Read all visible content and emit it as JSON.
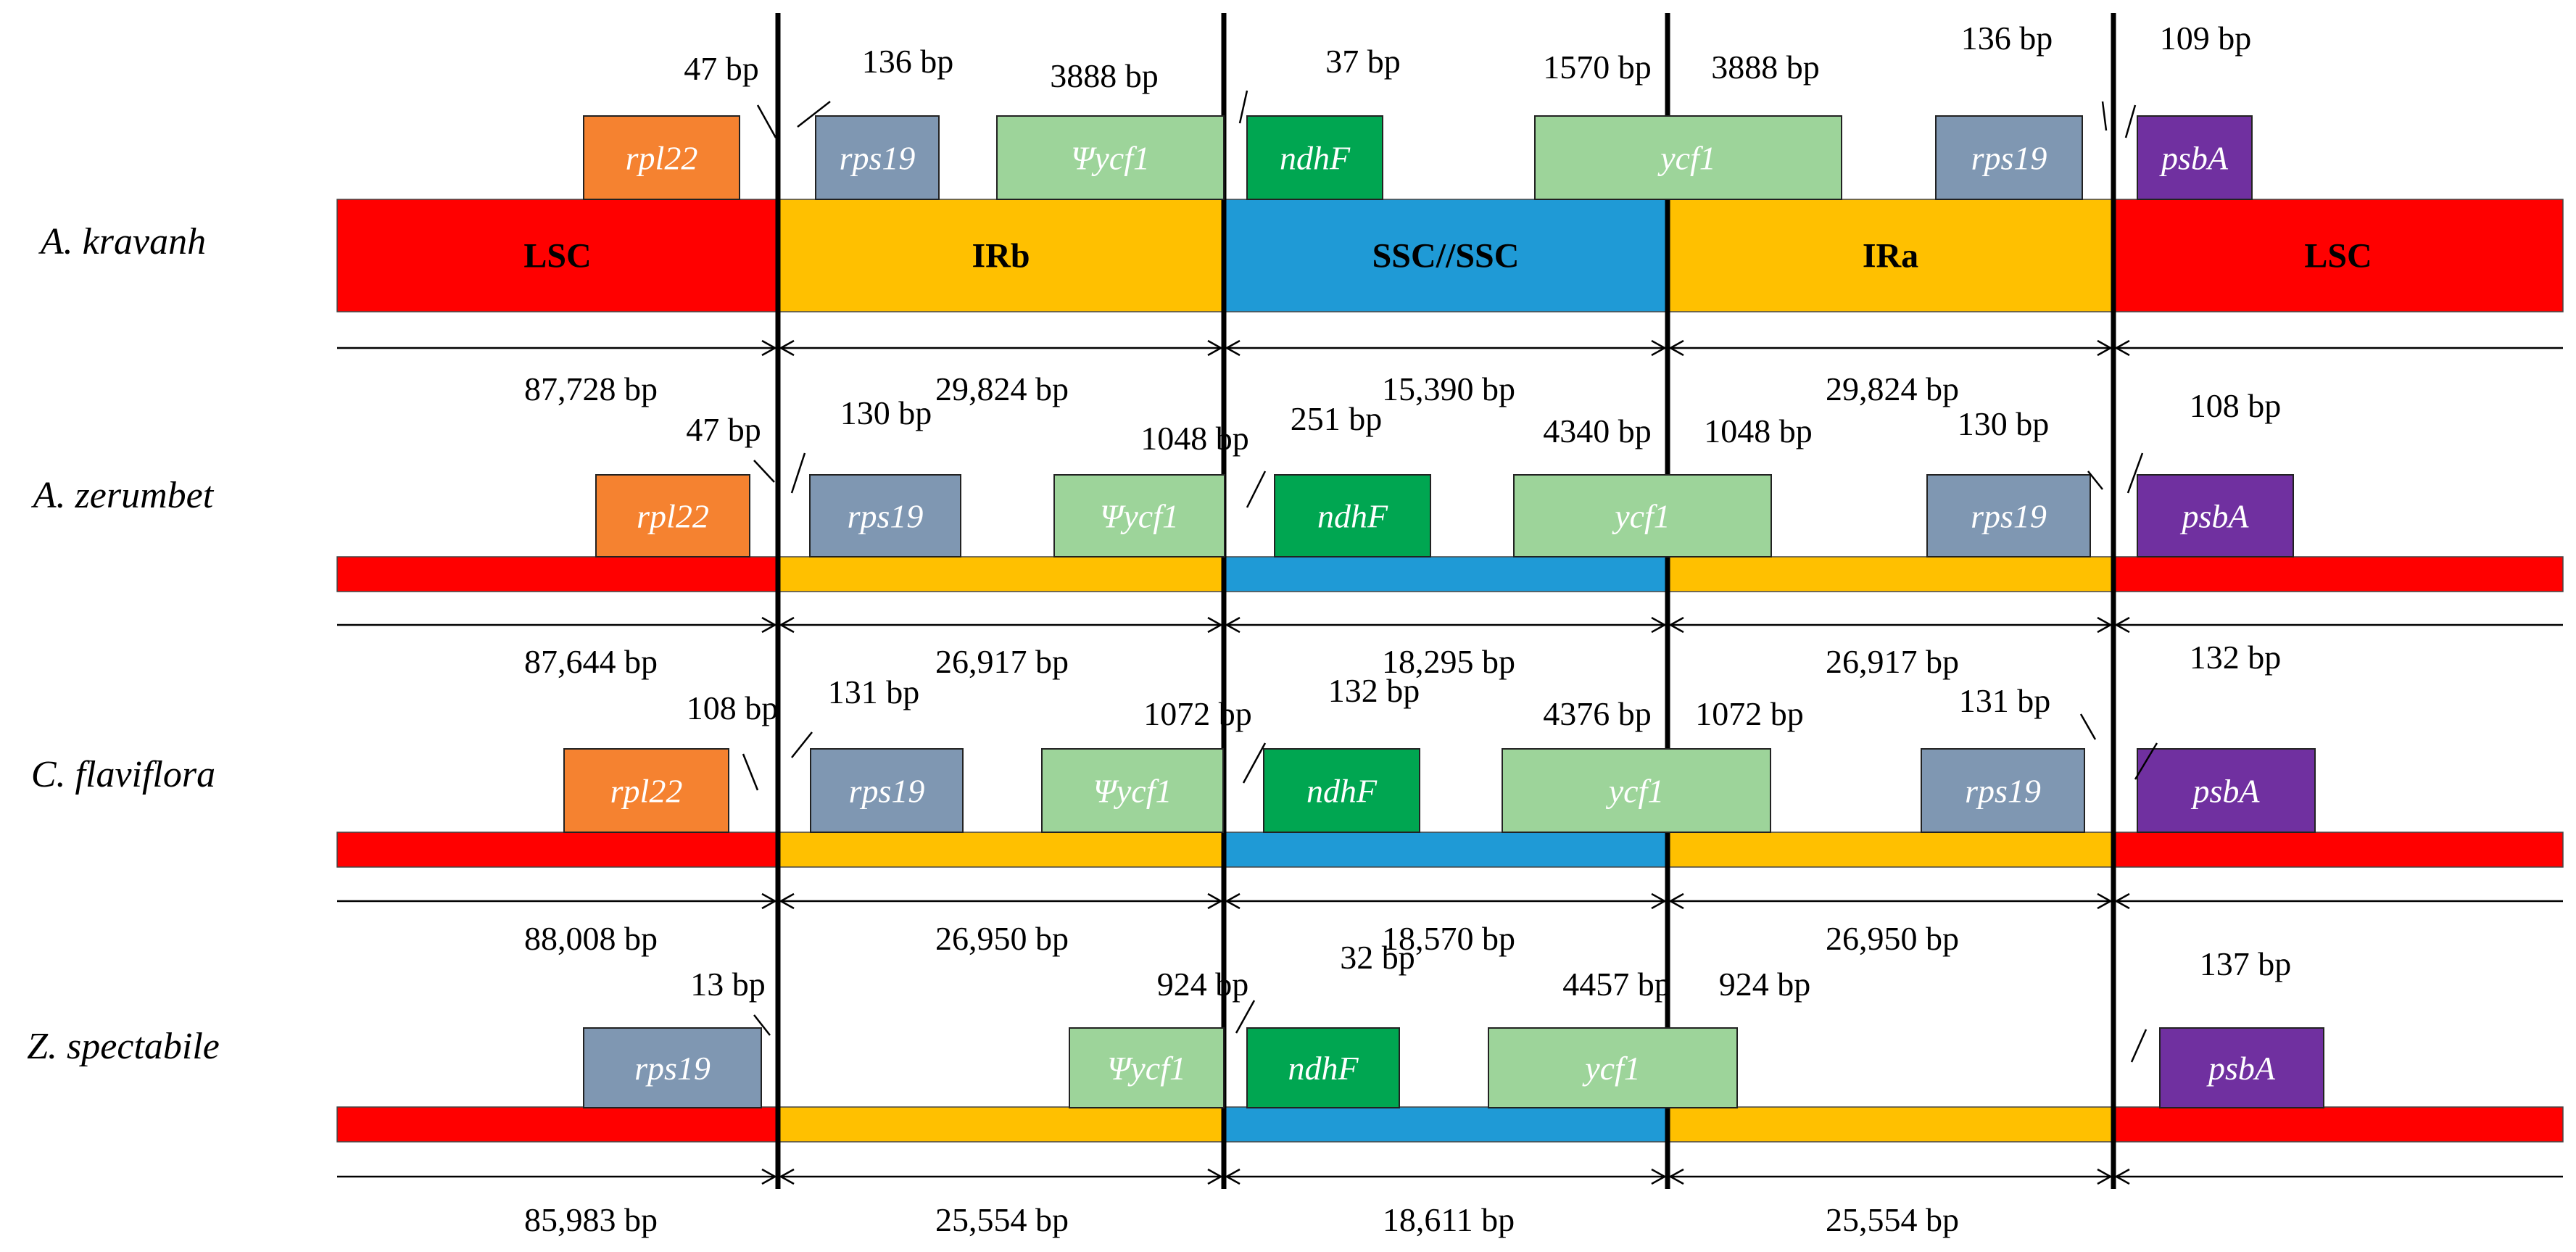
{
  "colors": {
    "LSC": "#ff0000",
    "IR": "#ffc000",
    "SSC": "#1f9ad6",
    "rpl22": "#f58230",
    "rps19": "#7f97b2",
    "ycf1": "#9dd49a",
    "ndhF": "#00a651",
    "psbA": "#7030a0"
  },
  "species": [
    {
      "name": "A. kravanh",
      "regions": [
        "LSC",
        "IRb",
        "SSC//SSC",
        "IRa",
        "LSC"
      ],
      "genes": [
        {
          "id": "rpl22",
          "label": "rpl22"
        },
        {
          "id": "rps19",
          "label": "rps19"
        },
        {
          "id": "ycf1",
          "label": "Ψycf1"
        },
        {
          "id": "ndhF",
          "label": "ndhF"
        },
        {
          "id": "ycf1",
          "label": "ycf1"
        },
        {
          "id": "rps19",
          "label": "rps19"
        },
        {
          "id": "psbA",
          "label": "psbA"
        }
      ],
      "annotations": [
        "47 bp",
        "136 bp",
        "3888 bp",
        "37 bp",
        "1570 bp",
        "3888 bp",
        "136 bp",
        "109 bp"
      ],
      "lengths": [
        "87,728 bp",
        "29,824 bp",
        "15,390 bp",
        "29,824 bp"
      ]
    },
    {
      "name": "A. zerumbet",
      "regions": [],
      "genes": [
        {
          "id": "rpl22",
          "label": "rpl22"
        },
        {
          "id": "rps19",
          "label": "rps19"
        },
        {
          "id": "ycf1",
          "label": "Ψycf1"
        },
        {
          "id": "ndhF",
          "label": "ndhF"
        },
        {
          "id": "ycf1",
          "label": "ycf1"
        },
        {
          "id": "rps19",
          "label": "rps19"
        },
        {
          "id": "psbA",
          "label": "psbA"
        }
      ],
      "annotations": [
        "47 bp",
        "130 bp",
        "1048 bp",
        "251 bp",
        "4340 bp",
        "1048 bp",
        "130 bp",
        "108 bp"
      ],
      "lengths": [
        "87,644 bp",
        "26,917 bp",
        "18,295 bp",
        "26,917 bp"
      ]
    },
    {
      "name": "C. flaviflora",
      "regions": [],
      "genes": [
        {
          "id": "rpl22",
          "label": "rpl22"
        },
        {
          "id": "rps19",
          "label": "rps19"
        },
        {
          "id": "ycf1",
          "label": "Ψycf1"
        },
        {
          "id": "ndhF",
          "label": "ndhF"
        },
        {
          "id": "ycf1",
          "label": "ycf1"
        },
        {
          "id": "rps19",
          "label": "rps19"
        },
        {
          "id": "psbA",
          "label": "psbA"
        }
      ],
      "annotations": [
        "108 bp",
        "131 bp",
        "1072 bp",
        "132 bp",
        "4376 bp",
        "1072 bp",
        "131 bp",
        "132 bp"
      ],
      "lengths": [
        "88,008 bp",
        "26,950 bp",
        "18,570 bp",
        "26,950 bp"
      ]
    },
    {
      "name": "Z. spectabile",
      "regions": [],
      "genes": [
        {
          "id": "rps19",
          "label": "rps19"
        },
        {
          "id": "ycf1",
          "label": "Ψycf1"
        },
        {
          "id": "ndhF",
          "label": "ndhF"
        },
        {
          "id": "ycf1",
          "label": "ycf1"
        },
        {
          "id": "psbA",
          "label": "psbA"
        }
      ],
      "annotations": [
        "13 bp",
        "924 bp",
        "32 bp",
        "4457 bp",
        "924 bp",
        "137 bp"
      ],
      "lengths": [
        "85,983 bp",
        "25,554 bp",
        "18,611 bp",
        "25,554 bp"
      ]
    }
  ]
}
